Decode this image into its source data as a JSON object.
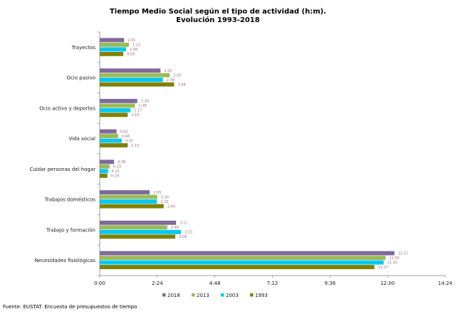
{
  "chart_data": {
    "type": "bar",
    "orientation": "horizontal",
    "title": "Tiempo Medio Social según el tipo de actividad (h:m).",
    "subtitle": "Evolución 1993-2018",
    "categories": [
      "Trayectos",
      "Ocio pasivo",
      "Ocio activo y deportes",
      "Vida social",
      "Cuidar personas del hogar",
      "Trabajos domésticos",
      "Trabajo y formación",
      "Necesidades fisiológicas"
    ],
    "series": [
      {
        "name": "2018",
        "color": "#7f6a9c",
        "values": [
          "1:01",
          "2:32",
          "1:34",
          "0:42",
          "0:36",
          "2:05",
          "3:11",
          "12:17"
        ]
      },
      {
        "name": "2013",
        "color": "#9bbb59",
        "values": [
          "1:13",
          "2:55",
          "1:28",
          "0:46",
          "0:25",
          "2:24",
          "2:49",
          "11:55"
        ]
      },
      {
        "name": "2003",
        "color": "#00c8f0",
        "values": [
          "1:06",
          "2:38",
          "1:17",
          "0:55",
          "0:21",
          "2:23",
          "3:23",
          "11:50"
        ]
      },
      {
        "name": "1993",
        "color": "#808000",
        "values": [
          "0:59",
          "3:06",
          "1:10",
          "1:10",
          "0:19",
          "2:40",
          "3:09",
          "11:27"
        ]
      }
    ],
    "xlim": [
      "0:00",
      "14:24"
    ],
    "xticks": [
      "0:00",
      "2:24",
      "4:48",
      "7:12",
      "9:36",
      "12:00",
      "14:24"
    ],
    "grid": false,
    "legend_position": "bottom"
  },
  "source": "Fuente: EUSTAT. Encuesta de presupuestos de tiempo"
}
